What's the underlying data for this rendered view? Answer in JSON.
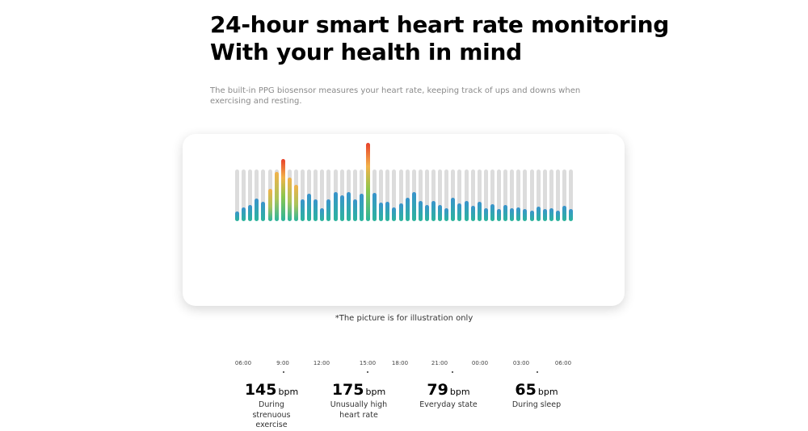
{
  "header": {
    "title_line1": "24-hour smart heart rate monitoring",
    "title_line2": "With your health in mind",
    "description": "The built-in PPG biosensor measures your heart rate, keeping track of ups and downs when exercising and resting."
  },
  "chart_data": {
    "type": "bar",
    "values": [
      0.18,
      0.27,
      0.32,
      0.43,
      0.38,
      0.63,
      0.95,
      1.2,
      0.84,
      0.7,
      0.42,
      0.53,
      0.42,
      0.25,
      0.42,
      0.56,
      0.5,
      0.56,
      0.42,
      0.53,
      1.52,
      0.55,
      0.36,
      0.38,
      0.27,
      0.34,
      0.46,
      0.56,
      0.39,
      0.32,
      0.39,
      0.32,
      0.25,
      0.46,
      0.34,
      0.39,
      0.3,
      0.37,
      0.25,
      0.33,
      0.24,
      0.32,
      0.25,
      0.27,
      0.23,
      0.2,
      0.28,
      0.24,
      0.25,
      0.21,
      0.29,
      0.23
    ],
    "tick_labels": [
      "06:00",
      "9:00",
      "12:00",
      "15:00",
      "18:00",
      "21:00",
      "00:00",
      "03:00",
      "06:00"
    ],
    "colors": {
      "track": "#dcdcdc",
      "base": "#2bb59c",
      "normal": "#3a93cc",
      "high": "#f2b24a",
      "peak": "#e8412b"
    }
  },
  "stats": [
    {
      "value": "145",
      "unit": "bpm",
      "label": "During strenuous exercise"
    },
    {
      "value": "175",
      "unit": "bpm",
      "label": "Unusually high heart rate"
    },
    {
      "value": "79",
      "unit": "bpm",
      "label": "Everyday state"
    },
    {
      "value": "65",
      "unit": "bpm",
      "label": "During sleep"
    }
  ],
  "footnote": "*The picture is for illustration only"
}
